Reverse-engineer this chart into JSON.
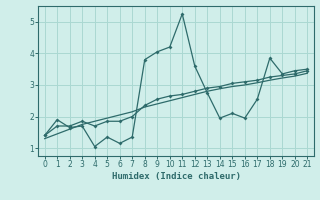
{
  "xlabel": "Humidex (Indice chaleur)",
  "x": [
    0,
    1,
    2,
    3,
    4,
    5,
    6,
    7,
    8,
    9,
    10,
    11,
    12,
    13,
    14,
    15,
    16,
    17,
    18,
    19,
    20,
    21
  ],
  "y_jagged1": [
    1.4,
    1.9,
    1.65,
    1.7,
    1.05,
    1.35,
    1.15,
    1.35,
    3.8,
    4.05,
    4.2,
    5.25,
    3.6,
    2.75,
    1.95,
    2.1,
    1.95,
    2.55,
    3.85,
    3.35,
    3.45,
    3.5
  ],
  "y_jagged2": [
    1.4,
    1.7,
    1.7,
    1.85,
    1.7,
    1.85,
    1.85,
    2.0,
    2.35,
    2.55,
    2.65,
    2.7,
    2.8,
    2.9,
    2.95,
    3.05,
    3.1,
    3.15,
    3.25,
    3.3,
    3.35,
    3.45
  ],
  "y_trend": [
    1.3,
    1.45,
    1.6,
    1.75,
    1.85,
    1.95,
    2.05,
    2.15,
    2.3,
    2.4,
    2.5,
    2.6,
    2.7,
    2.8,
    2.88,
    2.95,
    3.0,
    3.07,
    3.15,
    3.22,
    3.28,
    3.37
  ],
  "line_color": "#2e6b6b",
  "bg_color": "#d0eeea",
  "grid_color": "#aad8d2",
  "ylim": [
    0.75,
    5.5
  ],
  "xlim": [
    -0.5,
    21.5
  ],
  "yticks": [
    1,
    2,
    3,
    4,
    5
  ],
  "xticks": [
    0,
    1,
    2,
    3,
    4,
    5,
    6,
    7,
    8,
    9,
    10,
    11,
    12,
    13,
    14,
    15,
    16,
    17,
    18,
    19,
    20,
    21
  ]
}
